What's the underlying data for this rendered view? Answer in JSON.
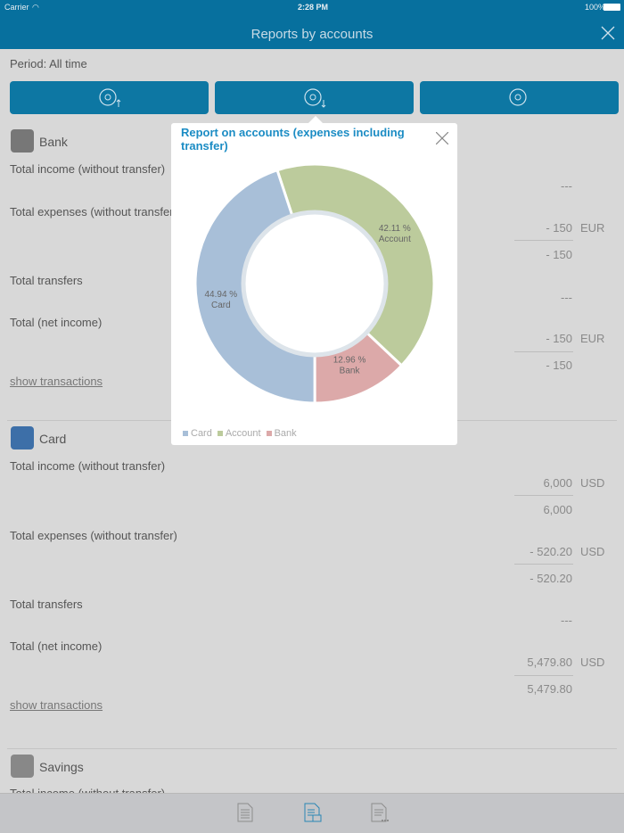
{
  "status": {
    "carrier": "Carrier",
    "time": "2:28 PM",
    "battery": "100%"
  },
  "nav": {
    "title": "Reports by accounts",
    "close_icon": "close-icon"
  },
  "period": "Period: All time",
  "report_buttons": [
    {
      "icon": "pie-chart-income-icon"
    },
    {
      "icon": "pie-chart-expenses-icon"
    },
    {
      "icon": "pie-chart-icon"
    }
  ],
  "accounts": [
    {
      "name": "Bank",
      "rows": [
        {
          "label": "Total income (without transfer)",
          "value": "---"
        },
        {
          "label": "Total expenses (without transfer)",
          "value": "- 150",
          "currency": "EUR",
          "total": "- 150"
        },
        {
          "label": "Total transfers",
          "value": "---"
        },
        {
          "label": "Total (net income)",
          "value": "- 150",
          "currency": "EUR",
          "total": "- 150"
        }
      ],
      "link": "show transactions"
    },
    {
      "name": "Card",
      "rows": [
        {
          "label": "Total income (without transfer)",
          "value": "6,000",
          "currency": "USD",
          "total": "6,000"
        },
        {
          "label": "Total expenses (without transfer)",
          "value": "- 520.20",
          "currency": "USD",
          "total": "- 520.20"
        },
        {
          "label": "Total transfers",
          "value": "---"
        },
        {
          "label": "Total (net income)",
          "value": "5,479.80",
          "currency": "USD",
          "total": "5,479.80"
        }
      ],
      "link": "show transactions"
    },
    {
      "name": "Savings",
      "rows": [
        {
          "label": "Total income (without transfer)"
        }
      ]
    }
  ],
  "popup": {
    "title": "Report on accounts (expenses including transfer)"
  },
  "chart_data": {
    "type": "pie",
    "donut": true,
    "title": "Report on accounts (expenses including transfer)",
    "slices": [
      {
        "name": "Account",
        "percent": 42.11,
        "label": "42.11 %",
        "color": "#bccb9c"
      },
      {
        "name": "Bank",
        "percent": 12.96,
        "label": "12.96 %",
        "color": "#dca9a9"
      },
      {
        "name": "Card",
        "percent": 44.94,
        "label": "44.94 %",
        "color": "#a8bfd8"
      }
    ],
    "legend": [
      "Card",
      "Account",
      "Bank"
    ],
    "legend_position": "bottom-left"
  },
  "tabbar": [
    {
      "icon": "report-icon"
    },
    {
      "icon": "report-accounts-icon",
      "active": true
    },
    {
      "icon": "report-categories-icon"
    }
  ]
}
